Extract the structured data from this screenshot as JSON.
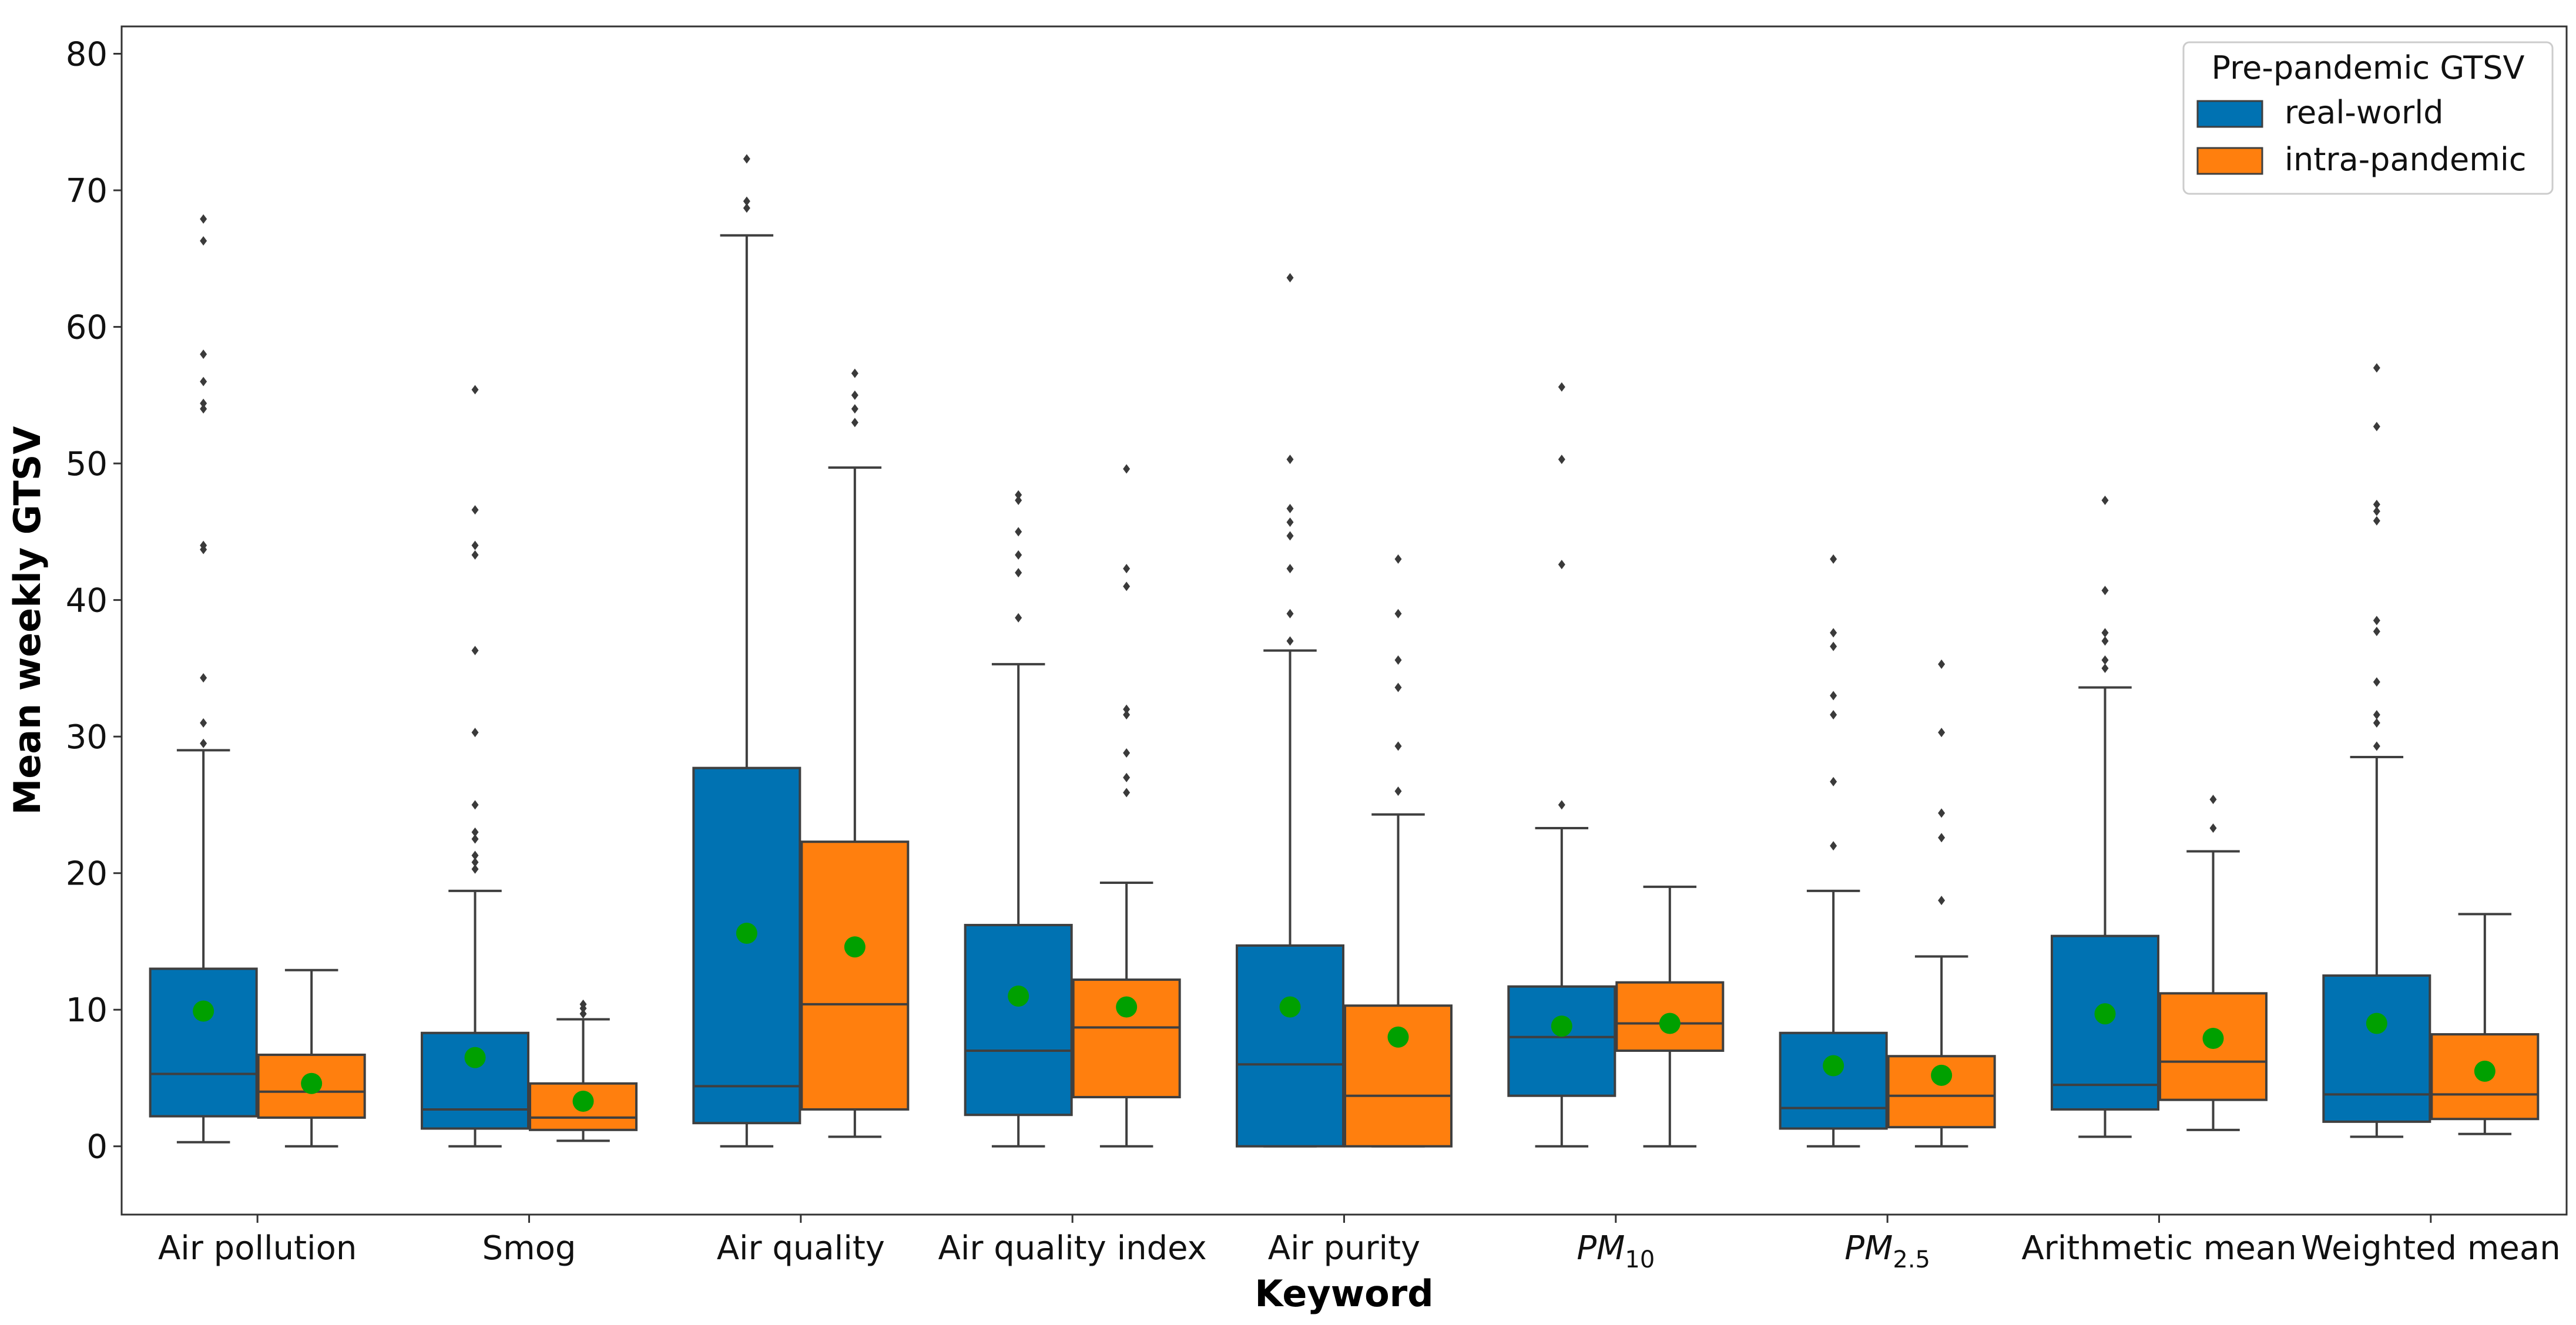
{
  "chart_data": {
    "type": "box",
    "title": "",
    "xlabel": "Keyword",
    "ylabel": "Mean weekly GTSV",
    "ylim": [
      -5,
      82
    ],
    "yticks": [
      0,
      10,
      20,
      30,
      40,
      50,
      60,
      70,
      80
    ],
    "grid": false,
    "legend": {
      "title": "Pre-pandemic GTSV",
      "placement": "top-right"
    },
    "categories": [
      {
        "label": "Air pollution"
      },
      {
        "label": "Smog"
      },
      {
        "label": "Air quality"
      },
      {
        "label": "Air quality index"
      },
      {
        "label": "Air purity"
      },
      {
        "label": "PM",
        "sub": "10"
      },
      {
        "label": "PM",
        "sub": "2.5"
      },
      {
        "label": "Arithmetic mean"
      },
      {
        "label": "Weighted mean"
      }
    ],
    "series": [
      {
        "name": "real-world",
        "color": "#0072B2",
        "boxes": [
          {
            "whisker_low": 0.3,
            "q1": 2.2,
            "median": 5.3,
            "q3": 13.0,
            "whisker_high": 29.0,
            "mean": 9.9,
            "outliers": [
              29.5,
              31.0,
              34.3,
              43.7,
              44.0,
              54.0,
              54.4,
              56.0,
              58.0,
              66.3,
              67.9
            ]
          },
          {
            "whisker_low": 0.0,
            "q1": 1.3,
            "median": 2.7,
            "q3": 8.3,
            "whisker_high": 18.7,
            "mean": 6.5,
            "outliers": [
              20.3,
              20.8,
              21.3,
              22.5,
              23.0,
              25.0,
              30.3,
              36.3,
              43.3,
              44.0,
              46.6,
              55.4
            ]
          },
          {
            "whisker_low": 0.0,
            "q1": 1.7,
            "median": 4.4,
            "q3": 27.7,
            "whisker_high": 66.7,
            "mean": 15.6,
            "outliers": [
              68.7,
              69.2,
              72.3
            ]
          },
          {
            "whisker_low": 0.0,
            "q1": 2.3,
            "median": 7.0,
            "q3": 16.2,
            "whisker_high": 35.3,
            "mean": 11.0,
            "outliers": [
              38.7,
              42.0,
              43.3,
              45.0,
              47.3,
              47.7
            ]
          },
          {
            "whisker_low": 0.0,
            "q1": 0.0,
            "median": 6.0,
            "q3": 14.7,
            "whisker_high": 36.3,
            "mean": 10.2,
            "outliers": [
              37.0,
              39.0,
              42.3,
              44.7,
              45.7,
              46.7,
              50.3,
              63.6
            ]
          },
          {
            "whisker_low": 0.0,
            "q1": 3.7,
            "median": 8.0,
            "q3": 11.7,
            "whisker_high": 23.3,
            "mean": 8.8,
            "outliers": [
              25.0,
              42.6,
              50.3,
              55.6
            ]
          },
          {
            "whisker_low": 0.0,
            "q1": 1.3,
            "median": 2.8,
            "q3": 8.3,
            "whisker_high": 18.7,
            "mean": 5.9,
            "outliers": [
              22.0,
              26.7,
              31.6,
              33.0,
              36.6,
              37.6,
              43.0
            ]
          },
          {
            "whisker_low": 0.7,
            "q1": 2.7,
            "median": 4.5,
            "q3": 15.4,
            "whisker_high": 33.6,
            "mean": 9.7,
            "outliers": [
              35.0,
              35.6,
              37.0,
              37.6,
              40.7,
              47.3
            ]
          },
          {
            "whisker_low": 0.7,
            "q1": 1.8,
            "median": 3.8,
            "q3": 12.5,
            "whisker_high": 28.5,
            "mean": 9.0,
            "outliers": [
              29.3,
              31.0,
              31.6,
              34.0,
              37.7,
              38.5,
              45.8,
              46.5,
              47.0,
              52.7,
              57.0
            ]
          }
        ]
      },
      {
        "name": "intra-pandemic",
        "color": "#FF7F0E",
        "boxes": [
          {
            "whisker_low": 0.0,
            "q1": 2.1,
            "median": 4.0,
            "q3": 6.7,
            "whisker_high": 12.9,
            "mean": 4.6,
            "outliers": []
          },
          {
            "whisker_low": 0.4,
            "q1": 1.2,
            "median": 2.1,
            "q3": 4.6,
            "whisker_high": 9.3,
            "mean": 3.3,
            "outliers": [
              9.7,
              10.1,
              10.4
            ]
          },
          {
            "whisker_low": 0.7,
            "q1": 2.7,
            "median": 10.4,
            "q3": 22.3,
            "whisker_high": 49.7,
            "mean": 14.6,
            "outliers": [
              53.0,
              54.0,
              55.0,
              56.6
            ]
          },
          {
            "whisker_low": 0.0,
            "q1": 3.6,
            "median": 8.7,
            "q3": 12.2,
            "whisker_high": 19.3,
            "mean": 10.2,
            "outliers": [
              25.9,
              27.0,
              28.8,
              31.6,
              32.0,
              41.0,
              42.3,
              49.6
            ]
          },
          {
            "whisker_low": 0.0,
            "q1": 0.0,
            "median": 3.7,
            "q3": 10.3,
            "whisker_high": 24.3,
            "mean": 8.0,
            "outliers": [
              26.0,
              29.3,
              33.6,
              35.6,
              39.0,
              43.0
            ]
          },
          {
            "whisker_low": 0.0,
            "q1": 7.0,
            "median": 9.0,
            "q3": 12.0,
            "whisker_high": 19.0,
            "mean": 9.0,
            "outliers": []
          },
          {
            "whisker_low": 0.0,
            "q1": 1.4,
            "median": 3.7,
            "q3": 6.6,
            "whisker_high": 13.9,
            "mean": 5.2,
            "outliers": [
              18.0,
              22.6,
              24.4,
              30.3,
              35.3
            ]
          },
          {
            "whisker_low": 1.2,
            "q1": 3.4,
            "median": 6.2,
            "q3": 11.2,
            "whisker_high": 21.6,
            "mean": 7.9,
            "outliers": [
              23.3,
              25.4
            ]
          },
          {
            "whisker_low": 0.9,
            "q1": 2.0,
            "median": 3.8,
            "q3": 8.2,
            "whisker_high": 17.0,
            "mean": 5.5,
            "outliers": []
          }
        ]
      }
    ]
  }
}
